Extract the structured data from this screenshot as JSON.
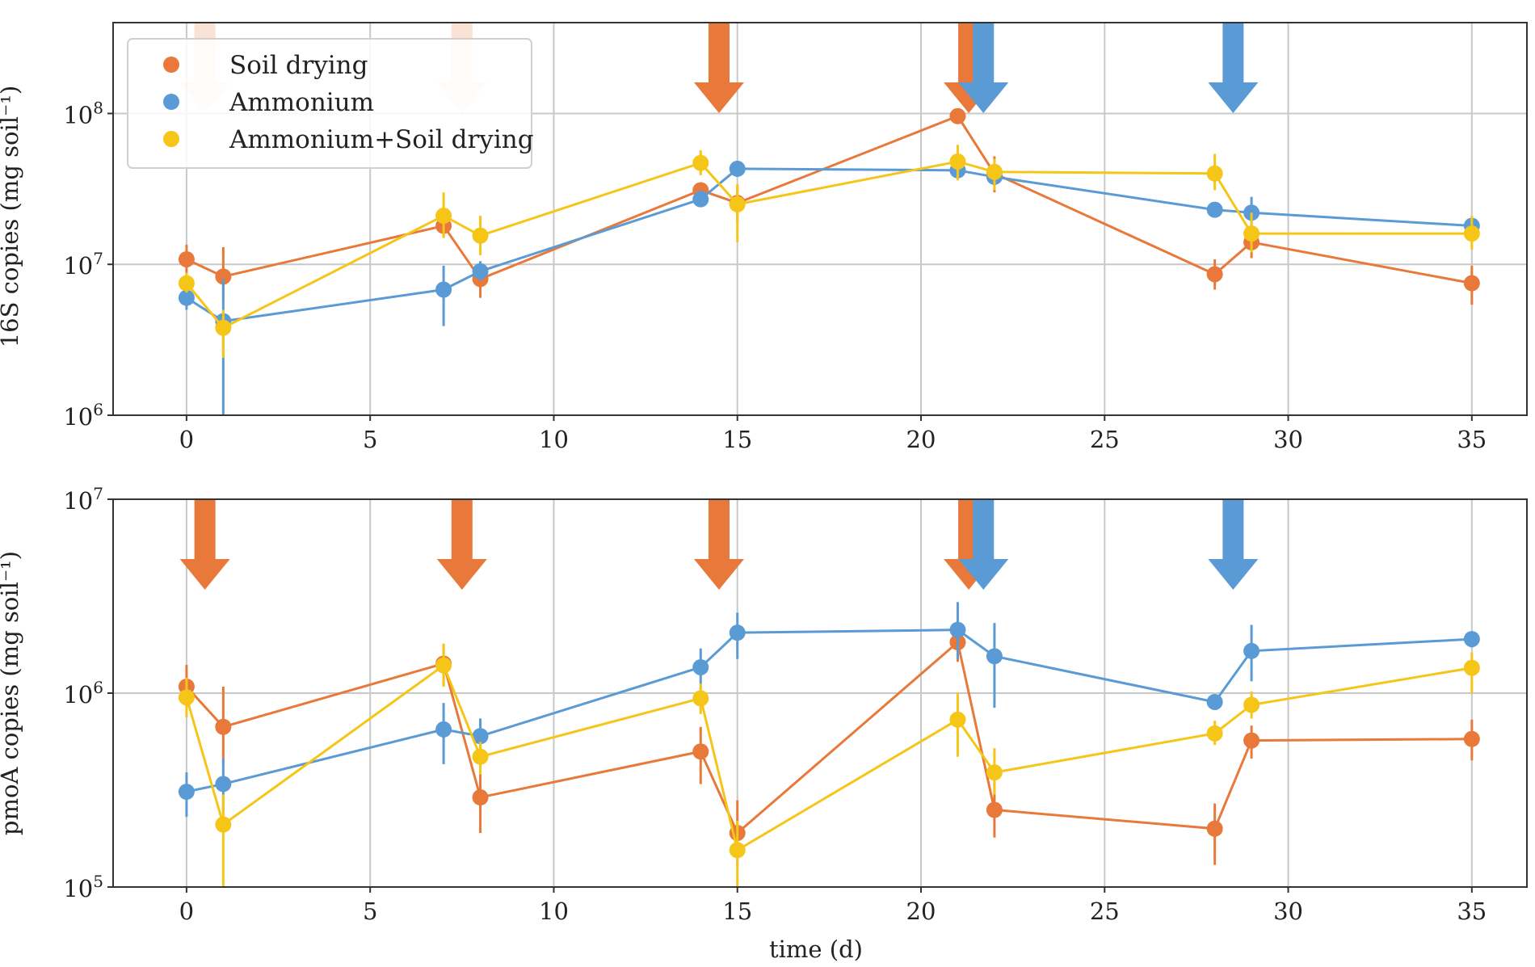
{
  "chart_data": {
    "type": "line",
    "figure_xlabel": "time (d)",
    "x_ticks": [
      0,
      5,
      10,
      15,
      20,
      25,
      30,
      35
    ],
    "xlim": [
      -2,
      36.5
    ],
    "legend": {
      "placement": "top-left of upper panel",
      "entries": [
        "Soil drying",
        "Ammonium",
        "Ammonium+Soil drying"
      ]
    },
    "colors": {
      "Soil drying": "#E8793A",
      "Ammonium": "#5B9BD5",
      "Ammonium+Soil drying": "#F5C518"
    },
    "treatment_arrows": {
      "Soil drying": [
        0.5,
        7.5,
        14.5,
        21.3
      ],
      "Ammonium": [
        21.7,
        28.5
      ]
    },
    "panels": [
      {
        "ylabel": "16S copies (mg soil⁻¹)",
        "yscale": "log",
        "ylim": [
          1000000,
          400000000
        ],
        "y_ticks": [
          {
            "value": 1000000,
            "base": "10",
            "exp": "6"
          },
          {
            "value": 10000000,
            "base": "10",
            "exp": "7"
          },
          {
            "value": 100000000,
            "base": "10",
            "exp": "8"
          }
        ],
        "faded_drying_arrows": [
          0.5,
          7.5
        ],
        "series": [
          {
            "name": "Soil drying",
            "x": [
              0,
              1,
              7,
              8,
              14,
              15,
              21,
              22,
              28,
              29,
              35
            ],
            "y": [
              10800000,
              8300000,
              18000000,
              8000000,
              31000000,
              25500000,
              96000000,
              40000000,
              8600000,
              14000000,
              7500000
            ],
            "err_low": [
              8500000,
              5800000,
              15000000,
              6000000,
              27000000,
              19000000,
              90000000,
              30000000,
              6800000,
              11000000,
              5400000
            ],
            "err_high": [
              13500000,
              13000000,
              21000000,
              10000000,
              35000000,
              33000000,
              103000000,
              52000000,
              10800000,
              17500000,
              9800000
            ]
          },
          {
            "name": "Ammonium",
            "x": [
              0,
              1,
              7,
              8,
              14,
              15,
              21,
              22,
              28,
              29,
              35
            ],
            "y": [
              6000000,
              4200000,
              6800000,
              9000000,
              27000000,
              43000000,
              42000000,
              38000000,
              23000000,
              22000000,
              18000000
            ],
            "err_low": [
              5000000,
              1000000,
              3900000,
              7800000,
              24000000,
              38000000,
              37000000,
              34000000,
              21000000,
              17000000,
              16500000
            ],
            "err_high": [
              7200000,
              8000000,
              9800000,
              10500000,
              31000000,
              48000000,
              47000000,
              42000000,
              25000000,
              28000000,
              19500000
            ]
          },
          {
            "name": "Ammonium+Soil drying",
            "x": [
              0,
              1,
              7,
              8,
              14,
              15,
              21,
              22,
              28,
              29,
              35
            ],
            "y": [
              7500000,
              3800000,
              21000000,
              15500000,
              47000000,
              25000000,
              48000000,
              41000000,
              40000000,
              16000000,
              16000000
            ],
            "err_low": [
              6500000,
              2400000,
              15000000,
              11500000,
              39000000,
              14000000,
              36000000,
              31000000,
              31000000,
              12000000,
              12500000
            ],
            "err_high": [
              8800000,
              5000000,
              30000000,
              21000000,
              57000000,
              34000000,
              62000000,
              50000000,
              54000000,
              22000000,
              21000000
            ]
          }
        ]
      },
      {
        "ylabel": "pmoA copies (mg soil⁻¹)",
        "yscale": "log",
        "ylim": [
          100000,
          10000000
        ],
        "y_ticks": [
          {
            "value": 100000,
            "base": "10",
            "exp": "5"
          },
          {
            "value": 1000000,
            "base": "10",
            "exp": "6"
          },
          {
            "value": 10000000,
            "base": "10",
            "exp": "7"
          }
        ],
        "faded_drying_arrows": [],
        "series": [
          {
            "name": "Soil drying",
            "x": [
              0,
              1,
              7,
              8,
              14,
              15,
              21,
              22,
              28,
              29,
              35
            ],
            "y": [
              1080000,
              670000,
              1420000,
              290000,
              500000,
              190000,
              1830000,
              250000,
              200000,
              570000,
              580000
            ],
            "err_low": [
              850000,
              430000,
              1100000,
              190000,
              340000,
              130000,
              1450000,
              180000,
              130000,
              460000,
              450000
            ],
            "err_high": [
              1400000,
              1080000,
              1780000,
              440000,
              670000,
              280000,
              2300000,
              360000,
              270000,
              680000,
              730000
            ]
          },
          {
            "name": "Ammonium",
            "x": [
              0,
              1,
              7,
              8,
              14,
              15,
              21,
              22,
              28,
              29,
              35
            ],
            "y": [
              310000,
              340000,
              650000,
              600000,
              1360000,
              2050000,
              2120000,
              1550000,
              900000,
              1650000,
              1900000
            ],
            "err_low": [
              230000,
              240000,
              430000,
              480000,
              1050000,
              1500000,
              1500000,
              840000,
              820000,
              1150000,
              1720000
            ],
            "err_high": [
              390000,
              460000,
              890000,
              740000,
              1700000,
              2600000,
              2950000,
              2300000,
              980000,
              2250000,
              2080000
            ]
          },
          {
            "name": "Ammonium+Soil drying",
            "x": [
              0,
              1,
              7,
              8,
              14,
              15,
              21,
              22,
              28,
              29,
              35
            ],
            "y": [
              950000,
              210000,
              1390000,
              470000,
              940000,
              155000,
              730000,
              390000,
              620000,
              870000,
              1350000
            ],
            "err_low": [
              750000,
              100000,
              1080000,
              380000,
              780000,
              100000,
              470000,
              300000,
              540000,
              740000,
              1000000
            ],
            "err_high": [
              1200000,
              300000,
              1800000,
              560000,
              1120000,
              220000,
              1010000,
              520000,
              720000,
              1020000,
              1620000
            ]
          }
        ]
      }
    ]
  }
}
